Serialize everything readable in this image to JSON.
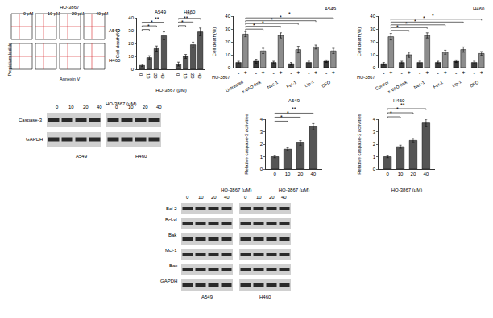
{
  "flow_cytometry": {
    "title": "HO-3867",
    "columns": [
      "0 μM",
      "10 μM",
      "20 μM",
      "40 μM"
    ],
    "rows": [
      "A549",
      "H460"
    ],
    "y_label": "Propidium Iodide",
    "x_label": "Annexin V"
  },
  "chart_data": [
    {
      "type": "bar",
      "y_label": "Cell death(%)",
      "x_label": "HO-3867 (μM)",
      "ylim": [
        0,
        40
      ],
      "yticks": [
        0,
        10,
        20,
        30,
        40
      ],
      "grid": false,
      "color": "#555555",
      "groups": [
        {
          "label": "A549",
          "categories": [
            "0",
            "10",
            "20",
            "40"
          ],
          "values": [
            3,
            9,
            16,
            26
          ],
          "errors": [
            1,
            1.5,
            2,
            3
          ],
          "significance": [
            {
              "from": 0,
              "to": 1,
              "label": "*"
            },
            {
              "from": 0,
              "to": 2,
              "label": "*"
            },
            {
              "from": 0,
              "to": 3,
              "label": "**"
            }
          ]
        },
        {
          "label": "H460",
          "categories": [
            "0",
            "10",
            "20",
            "40"
          ],
          "values": [
            4,
            10,
            19,
            29
          ],
          "errors": [
            1.5,
            1.5,
            2,
            3
          ],
          "significance": [
            {
              "from": 0,
              "to": 1,
              "label": "*"
            },
            {
              "from": 0,
              "to": 2,
              "label": "**"
            },
            {
              "from": 0,
              "to": 3,
              "label": "**"
            }
          ]
        }
      ]
    },
    {
      "type": "bar",
      "title": "A549",
      "y_label": "Cell death(%)",
      "row_label": "HO-3867",
      "ylim": [
        0,
        40
      ],
      "yticks": [
        0,
        10,
        20,
        30,
        40
      ],
      "grid": false,
      "categories": [
        "-",
        "+",
        "-",
        "+",
        "-",
        "+",
        "-",
        "+",
        "-",
        "+",
        "-",
        "+"
      ],
      "groups": [
        "Untreated",
        "z-VAD-fmk",
        "Nec-1",
        "Fer-1",
        "Lip-1",
        "DFO"
      ],
      "values": [
        4,
        26,
        5,
        13,
        4,
        25,
        3,
        14,
        4,
        16,
        5,
        13
      ],
      "errors": [
        1,
        2,
        1.5,
        2,
        1,
        2,
        1,
        2.5,
        1,
        1.5,
        1,
        2
      ],
      "colors": [
        "#3a3a3a",
        "#8c8c8c",
        "#3a3a3a",
        "#8c8c8c",
        "#3a3a3a",
        "#8c8c8c",
        "#3a3a3a",
        "#8c8c8c",
        "#3a3a3a",
        "#8c8c8c",
        "#3a3a3a",
        "#8c8c8c"
      ],
      "significance": [
        {
          "from": 1,
          "to": 3,
          "label": "*"
        },
        {
          "from": 1,
          "to": 5,
          "label": "*"
        },
        {
          "from": 1,
          "to": 7,
          "label": "*"
        },
        {
          "from": 1,
          "to": 9,
          "label": "*"
        },
        {
          "from": 1,
          "to": 11,
          "label": "*"
        }
      ]
    },
    {
      "type": "bar",
      "title": "H460",
      "y_label": "Cell death(%)",
      "row_label": "HO-3867",
      "ylim": [
        0,
        40
      ],
      "yticks": [
        0,
        10,
        20,
        30,
        40
      ],
      "grid": false,
      "categories": [
        "-",
        "+",
        "-",
        "+",
        "-",
        "+",
        "-",
        "+",
        "-",
        "+",
        "-",
        "+"
      ],
      "groups": [
        "Control",
        "z-VAD-fmk",
        "Nec-1",
        "Fer-1",
        "Lip-1",
        "DFO"
      ],
      "values": [
        3,
        24,
        4,
        10,
        4,
        25,
        4,
        12,
        5,
        14,
        4,
        11
      ],
      "errors": [
        1,
        2.5,
        1,
        2,
        1,
        2,
        1,
        1.5,
        1,
        2,
        1,
        1.5
      ],
      "colors": [
        "#3a3a3a",
        "#8c8c8c",
        "#3a3a3a",
        "#8c8c8c",
        "#3a3a3a",
        "#8c8c8c",
        "#3a3a3a",
        "#8c8c8c",
        "#3a3a3a",
        "#8c8c8c",
        "#3a3a3a",
        "#8c8c8c"
      ],
      "significance": [
        {
          "from": 1,
          "to": 3,
          "label": "*"
        },
        {
          "from": 1,
          "to": 5,
          "label": "*"
        },
        {
          "from": 1,
          "to": 7,
          "label": "*"
        },
        {
          "from": 1,
          "to": 9,
          "label": "*"
        },
        {
          "from": 1,
          "to": 11,
          "label": "*"
        }
      ]
    },
    {
      "type": "bar",
      "title": "A549",
      "y_label": "Relative caspase-3 activities",
      "x_label": "HO-3867 (μM)",
      "ylim": [
        0,
        4
      ],
      "yticks": [
        0,
        1,
        2,
        3,
        4
      ],
      "grid": false,
      "color": "#555555",
      "categories": [
        "0",
        "10",
        "20",
        "40"
      ],
      "values": [
        1,
        1.6,
        2.1,
        3.4
      ],
      "errors": [
        0.08,
        0.12,
        0.18,
        0.25
      ],
      "significance": [
        {
          "from": 0,
          "to": 1,
          "label": "*"
        },
        {
          "from": 0,
          "to": 2,
          "label": "*"
        },
        {
          "from": 0,
          "to": 3,
          "label": "**"
        }
      ]
    },
    {
      "type": "bar",
      "title": "H460",
      "y_label": "Relative caspase-3 activities",
      "x_label": "HO-3867 (μM)",
      "ylim": [
        0,
        4
      ],
      "yticks": [
        0,
        1,
        2,
        3,
        4
      ],
      "grid": false,
      "color": "#555555",
      "categories": [
        "0",
        "10",
        "20",
        "40"
      ],
      "values": [
        1,
        1.8,
        2.3,
        3.7
      ],
      "errors": [
        0.08,
        0.12,
        0.18,
        0.3
      ],
      "significance": [
        {
          "from": 0,
          "to": 1,
          "label": "*"
        },
        {
          "from": 0,
          "to": 2,
          "label": "*"
        },
        {
          "from": 0,
          "to": 3,
          "label": "**"
        }
      ]
    }
  ],
  "blots": [
    {
      "header": "HO-3867 (μM)",
      "lanes": [
        "0",
        "10",
        "20",
        "40"
      ],
      "cell_lines": [
        "A549",
        "H460"
      ],
      "proteins": [
        "Caspase-3",
        "GAPDH"
      ]
    },
    {
      "header": "HO-3867 (μM)",
      "lanes": [
        "0",
        "10",
        "20",
        "40"
      ],
      "cell_lines": [
        "A549",
        "H460"
      ],
      "proteins": [
        "Bcl-2",
        "Bcl-xl",
        "Bak",
        "Mcl-1",
        "Bax",
        "GAPDH"
      ]
    }
  ]
}
